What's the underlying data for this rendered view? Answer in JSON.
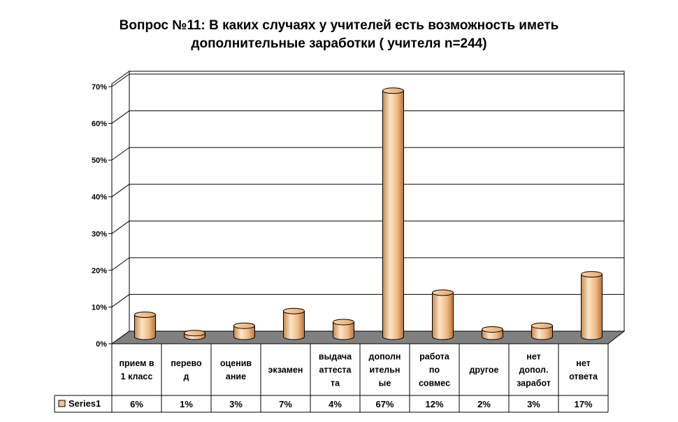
{
  "chart_data": {
    "type": "bar",
    "title_lines": [
      "Вопрос №11: В каких случаях у учителей есть возможность иметь",
      "дополнительные заработки ( учителя n=244)"
    ],
    "categories": [
      [
        "прием в",
        "1 класс"
      ],
      [
        "перево",
        "д"
      ],
      [
        "оценив",
        "ание"
      ],
      [
        "экзамен"
      ],
      [
        "выдача",
        "аттеста",
        "та"
      ],
      [
        "дополн",
        "ительн",
        "ые"
      ],
      [
        "работа",
        "по",
        "совмес"
      ],
      [
        "другое"
      ],
      [
        "нет",
        "допол.",
        "заработ"
      ],
      [
        "нет",
        "ответа"
      ]
    ],
    "series": [
      {
        "name": "Series1",
        "values": [
          6,
          1,
          3,
          7,
          4,
          67,
          12,
          2,
          3,
          17
        ],
        "value_labels": [
          "6%",
          "1%",
          "3%",
          "7%",
          "4%",
          "67%",
          "12%",
          "2%",
          "3%",
          "17%"
        ],
        "color": "#F5C490"
      }
    ],
    "yticks": [
      "0%",
      "10%",
      "20%",
      "30%",
      "40%",
      "50%",
      "60%",
      "70%"
    ],
    "ylim": [
      0,
      70
    ],
    "grid": true,
    "data_table": true,
    "colors": {
      "floor": "#808080",
      "grid": "#000000",
      "bar_light": "#FBE4C8",
      "bar_dark": "#C07A38"
    }
  }
}
